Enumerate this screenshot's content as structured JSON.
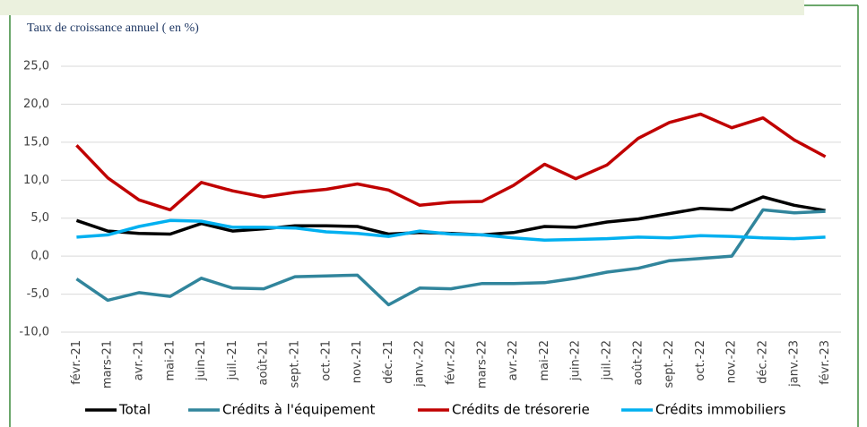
{
  "chart_data": {
    "type": "line",
    "title": "Taux de croissance annuel ( en %)",
    "categories": [
      "févr.-21",
      "mars-21",
      "avr.-21",
      "mai-21",
      "juin-21",
      "juil.-21",
      "août-21",
      "sept.-21",
      "oct.-21",
      "nov.-21",
      "déc.-21",
      "janv.-22",
      "févr.-22",
      "mars-22",
      "avr.-22",
      "mai-22",
      "juin-22",
      "juil.-22",
      "août-22",
      "sept.-22",
      "oct.-22",
      "nov.-22",
      "déc.-22",
      "janv.-23",
      "févr.-23"
    ],
    "series": [
      {
        "name": "Total",
        "color": "#000000",
        "values": [
          4.7,
          3.3,
          3.0,
          2.9,
          4.3,
          3.3,
          3.6,
          4.0,
          4.0,
          3.9,
          2.9,
          3.1,
          3.0,
          2.8,
          3.1,
          3.9,
          3.8,
          4.5,
          4.9,
          5.6,
          6.3,
          6.1,
          7.8,
          6.7,
          6.0
        ]
      },
      {
        "name": "Crédits à l'équipement",
        "color": "#31859c",
        "values": [
          -3.0,
          -5.8,
          -4.8,
          -5.3,
          -2.9,
          -4.2,
          -4.3,
          -2.7,
          -2.6,
          -2.5,
          -6.4,
          -4.2,
          -4.3,
          -3.6,
          -3.6,
          -3.5,
          -2.9,
          -2.1,
          -1.6,
          -0.6,
          -0.3,
          0.0,
          6.1,
          5.7,
          5.9
        ]
      },
      {
        "name": "Crédits de trésorerie",
        "color": "#c00000",
        "values": [
          14.6,
          10.3,
          7.4,
          6.1,
          9.7,
          8.6,
          7.8,
          8.4,
          8.8,
          9.5,
          8.7,
          6.7,
          7.1,
          7.2,
          9.3,
          12.1,
          10.2,
          12.0,
          15.5,
          17.6,
          18.7,
          16.9,
          18.2,
          15.3,
          13.1
        ]
      },
      {
        "name": "Crédits immobiliers",
        "color": "#00b0f0",
        "values": [
          2.5,
          2.8,
          3.9,
          4.7,
          4.6,
          3.8,
          3.8,
          3.7,
          3.2,
          3.0,
          2.6,
          3.3,
          2.9,
          2.8,
          2.4,
          2.1,
          2.2,
          2.3,
          2.5,
          2.4,
          2.7,
          2.6,
          2.4,
          2.3,
          2.5
        ]
      }
    ],
    "ylim": [
      -10,
      25
    ],
    "yticks": [
      {
        "value": -10,
        "label": "-10,0"
      },
      {
        "value": -5,
        "label": "-5,0"
      },
      {
        "value": 0,
        "label": "0,0"
      },
      {
        "value": 5,
        "label": "5,0"
      },
      {
        "value": 10,
        "label": "10,0"
      },
      {
        "value": 15,
        "label": "15,0"
      },
      {
        "value": 20,
        "label": "20,0"
      },
      {
        "value": 25,
        "label": "25,0"
      }
    ],
    "grid": true,
    "legend": "bottom"
  }
}
